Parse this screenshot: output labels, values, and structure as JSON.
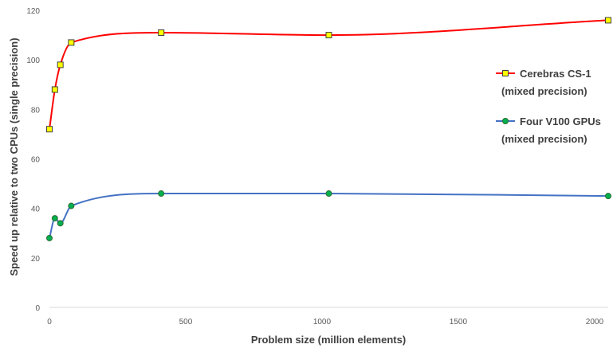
{
  "chart_data": {
    "type": "line",
    "title": "",
    "xlabel": "Problem size (million elements)",
    "ylabel": "Speed up relative to two CPUs (single precision)",
    "xlim": [
      0,
      2050
    ],
    "ylim": [
      0,
      120
    ],
    "x_ticks": [
      0,
      500,
      1000,
      1500,
      2000
    ],
    "y_ticks": [
      0,
      20,
      40,
      60,
      80,
      100,
      120
    ],
    "grid": false,
    "legend_position": "right",
    "series": [
      {
        "name_lines": [
          "Cerebras CS-1",
          "(mixed precision)"
        ],
        "color": "#ff0000",
        "marker": "square",
        "marker_fill": "#ffff00",
        "x": [
          0,
          20,
          40,
          80,
          410,
          1025,
          2050
        ],
        "y": [
          72,
          88,
          98,
          107,
          111,
          110,
          116
        ]
      },
      {
        "name_lines": [
          "Four V100 GPUs",
          "(mixed precision)"
        ],
        "color": "#4472c4",
        "marker": "circle",
        "marker_fill": "#00b050",
        "x": [
          0,
          20,
          40,
          80,
          410,
          1025,
          2050
        ],
        "y": [
          28,
          36,
          34,
          41,
          46,
          46,
          45
        ]
      }
    ]
  }
}
